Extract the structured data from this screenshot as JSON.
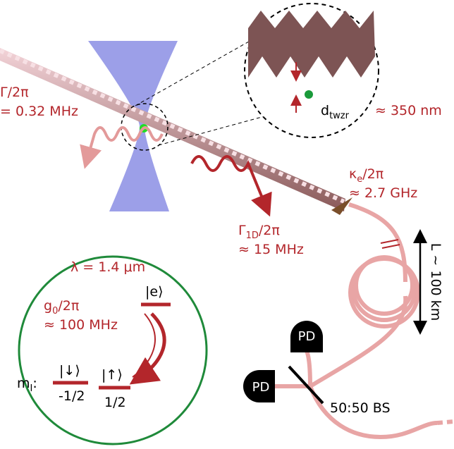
{
  "labels": {
    "gamma": {
      "line1": "Γ/2π",
      "line2": "= 0.32 MHz"
    },
    "dtwzr": {
      "base": "d",
      "sub": "twzr",
      "value": "≈ 350 nm"
    },
    "kappa": {
      "base": "κ",
      "sub": "e",
      "rest": "/2π",
      "value": "≈ 2.7 GHz"
    },
    "gamma1d": {
      "base": "Γ",
      "sub": "1D",
      "rest": "/2π",
      "value": "≈ 15 MHz"
    },
    "length": "L ~ 100 km",
    "splitter": "50:50 BS",
    "detectors": [
      "PD",
      "PD"
    ]
  },
  "level_diagram": {
    "wavelength": "λ = 1.4 μm",
    "coupling": {
      "base": "g",
      "sub": "0",
      "rest": "/2π",
      "value": "≈ 100 MHz"
    },
    "excited": "|e⟩",
    "spin_label": {
      "base": "m",
      "sub": "I",
      "rest": ":"
    },
    "down": "|↓⟩",
    "up": "|↑⟩",
    "down_m": "-1/2",
    "up_m": "1/2"
  }
}
